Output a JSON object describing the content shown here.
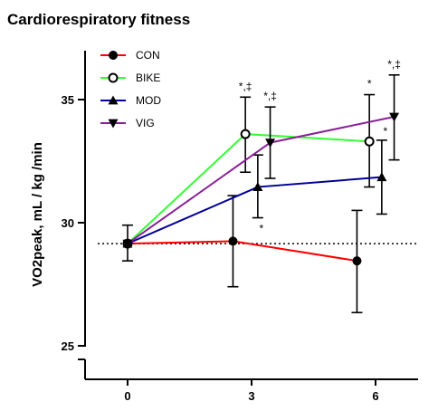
{
  "chart_data": {
    "type": "line",
    "title": "Cardiorespiratory fitness",
    "xlabel": "",
    "ylabel": "VO2peak, mL / kg /min",
    "x_ticks": [
      "0",
      "3",
      "6"
    ],
    "y_ticks": [
      "25",
      "30",
      "35"
    ],
    "ylim": [
      24.5,
      37
    ],
    "xlim": [
      -1,
      7
    ],
    "reference_line": {
      "y": 29.15,
      "style": "dotted"
    },
    "legend_position": "top-left",
    "grid": false,
    "series": [
      {
        "name": "CON",
        "color": "#ff0000",
        "marker": "filled-circle",
        "x": [
          0,
          2.55,
          5.55
        ],
        "y": [
          29.15,
          29.25,
          28.45
        ],
        "err_low": [
          28.45,
          27.4,
          26.35
        ],
        "err_high": [
          29.9,
          31.1,
          30.5
        ],
        "annotations": [
          "",
          "",
          ""
        ]
      },
      {
        "name": "BIKE",
        "color": "#33ff33",
        "marker": "open-circle",
        "x": [
          0,
          2.85,
          5.85
        ],
        "y": [
          29.15,
          33.6,
          33.3
        ],
        "err_low": [
          29.15,
          32.05,
          31.45
        ],
        "err_high": [
          29.15,
          35.1,
          35.2
        ],
        "annotations": [
          "",
          "*,‡",
          "*"
        ]
      },
      {
        "name": "MOD",
        "color": "#000099",
        "marker": "triangle-up",
        "x": [
          0,
          3.15,
          6.15
        ],
        "y": [
          29.15,
          31.45,
          31.85
        ],
        "err_low": [
          29.15,
          30.2,
          30.35
        ],
        "err_high": [
          29.15,
          32.75,
          33.35
        ],
        "annotations": [
          "",
          "*",
          "*"
        ]
      },
      {
        "name": "VIG",
        "color": "#8a1f99",
        "marker": "triangle-down",
        "x": [
          0,
          3.45,
          6.45
        ],
        "y": [
          29.15,
          33.25,
          34.3
        ],
        "err_low": [
          29.15,
          31.8,
          32.55
        ],
        "err_high": [
          29.15,
          34.7,
          36.0
        ],
        "annotations": [
          "",
          "*,‡",
          "*,‡"
        ]
      }
    ]
  }
}
